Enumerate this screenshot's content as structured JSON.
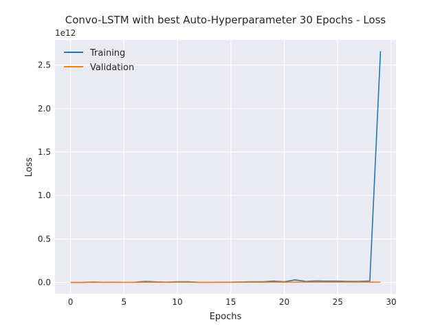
{
  "chart_data": {
    "type": "line",
    "title": "Convo-LSTM with best Auto-Hyperparameter 30 Epochs - Loss",
    "xlabel": "Epochs",
    "ylabel": "Loss",
    "y_offset_label": "1e12",
    "y_scale_factor": 1000000000000.0,
    "xlim": [
      -1.45,
      30.45
    ],
    "ylim": [
      -0.13,
      2.79
    ],
    "x_ticks": [
      0,
      5,
      10,
      15,
      20,
      25,
      30
    ],
    "x_tick_labels": [
      "0",
      "5",
      "10",
      "15",
      "20",
      "25",
      "30"
    ],
    "y_ticks": [
      0.0,
      0.5,
      1.0,
      1.5,
      2.0,
      2.5
    ],
    "y_tick_labels": [
      "0.0",
      "0.5",
      "1.0",
      "1.5",
      "2.0",
      "2.5"
    ],
    "grid": true,
    "legend_position": "top-left",
    "x": [
      0,
      1,
      2,
      3,
      4,
      5,
      6,
      7,
      8,
      9,
      10,
      11,
      12,
      13,
      14,
      15,
      16,
      17,
      18,
      19,
      20,
      21,
      22,
      23,
      24,
      25,
      26,
      27,
      28,
      29
    ],
    "series": [
      {
        "name": "Training",
        "color": "#1f77b4",
        "values": [
          0.0,
          0.0,
          0.005,
          0.002,
          0.003,
          0.002,
          0.003,
          0.012,
          0.007,
          0.003,
          0.008,
          0.008,
          0.002,
          0.002,
          0.003,
          0.003,
          0.006,
          0.008,
          0.008,
          0.016,
          0.008,
          0.03,
          0.012,
          0.017,
          0.015,
          0.015,
          0.012,
          0.012,
          0.016,
          2.66
        ]
      },
      {
        "name": "Validation",
        "color": "#ff7f0e",
        "values": [
          0.0,
          0.0,
          0.003,
          0.002,
          0.002,
          0.002,
          0.002,
          0.003,
          0.003,
          0.002,
          0.003,
          0.003,
          0.002,
          0.002,
          0.002,
          0.002,
          0.003,
          0.003,
          0.003,
          0.004,
          0.003,
          0.004,
          0.004,
          0.004,
          0.004,
          0.004,
          0.004,
          0.004,
          0.004,
          0.004
        ]
      }
    ]
  }
}
